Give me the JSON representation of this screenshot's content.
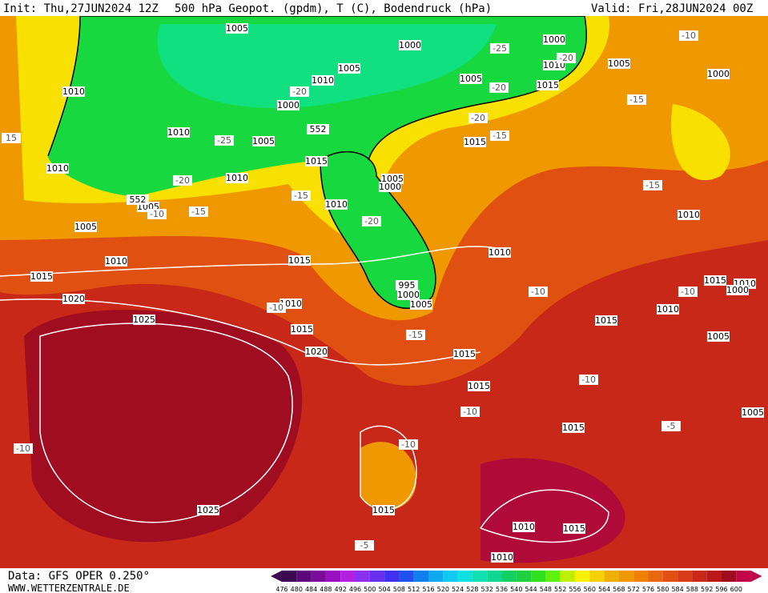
{
  "header": {
    "init": "Init: Thu,27JUN2024 12Z",
    "title": "500 hPa Geopot. (gpdm), T (C), Bodendruck (hPa)",
    "valid": "Valid: Fri,28JUN2024 00Z"
  },
  "footer": {
    "data": "Data: GFS OPER 0.250°",
    "site": "WWW.WETTERZENTRALE.DE"
  },
  "isobar_labels": [
    "1005",
    "1000",
    "1000",
    "1010",
    "1005",
    "1000",
    "1010",
    "1010",
    "1005",
    "1005",
    "1015",
    "1000",
    "1010",
    "1005",
    "1015",
    "1015",
    "1010",
    "1010",
    "1005",
    "1000",
    "1010",
    "1005",
    "1005",
    "1010",
    "1015",
    "1010",
    "1015",
    "1020",
    "1010",
    "1005",
    "1000",
    "1015",
    "1010",
    "1000",
    "1010",
    "1015",
    "1025",
    "1015",
    "1020",
    "1015",
    "1005",
    "1015",
    "1015",
    "1005",
    "1015",
    "1010",
    "1015",
    "1010",
    "1025",
    "1010",
    "995",
    "552",
    "552"
  ],
  "temperature_labels": [
    "-10",
    "-25",
    "-20",
    "-20",
    "-15",
    "-20",
    "-15",
    "-20",
    "-25",
    "-20",
    "-15",
    "-15",
    "-10",
    "-15",
    "-20",
    "-10",
    "-10",
    "-10",
    "-15",
    "-10",
    "-10",
    "-10",
    "-10",
    "-5",
    "-5",
    "15"
  ],
  "colorbar": {
    "labels": [
      "476",
      "480",
      "484",
      "488",
      "492",
      "496",
      "500",
      "504",
      "508",
      "512",
      "516",
      "520",
      "524",
      "528",
      "532",
      "536",
      "540",
      "544",
      "548",
      "552",
      "556",
      "560",
      "564",
      "568",
      "572",
      "576",
      "580",
      "584",
      "588",
      "592",
      "596",
      "600"
    ],
    "colors": [
      "#3c0a50",
      "#5a0a78",
      "#7a0a9a",
      "#9a10c0",
      "#b420e0",
      "#8a30f0",
      "#6a30f0",
      "#4030f0",
      "#2050f0",
      "#1080f0",
      "#10a8f0",
      "#10c8f0",
      "#10e0e0",
      "#10e0b0",
      "#10d890",
      "#10d060",
      "#20d040",
      "#30e020",
      "#60f010",
      "#c0f000",
      "#f8f000",
      "#f8d000",
      "#f0b000",
      "#f09800",
      "#f08000",
      "#e86810",
      "#e05010",
      "#d83c18",
      "#c82818",
      "#b81818",
      "#a00c20",
      "#c00848"
    ]
  }
}
